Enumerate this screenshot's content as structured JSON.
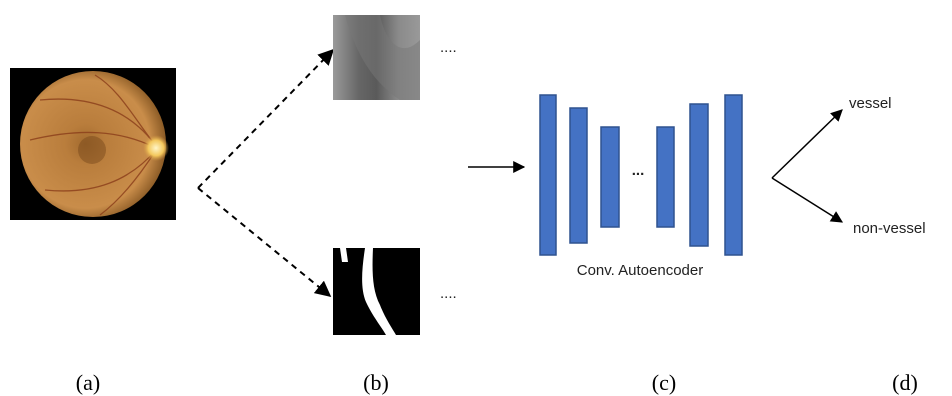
{
  "diagram": {
    "ellipsis_top": "....",
    "ellipsis_bottom": "....",
    "ellipsis_middle": "...",
    "model_label": "Conv. Autoencoder",
    "outputs": [
      "vessel",
      "non-vessel"
    ],
    "panel_labels": [
      "(a)",
      "(b)",
      "(c)",
      "(d)"
    ]
  }
}
